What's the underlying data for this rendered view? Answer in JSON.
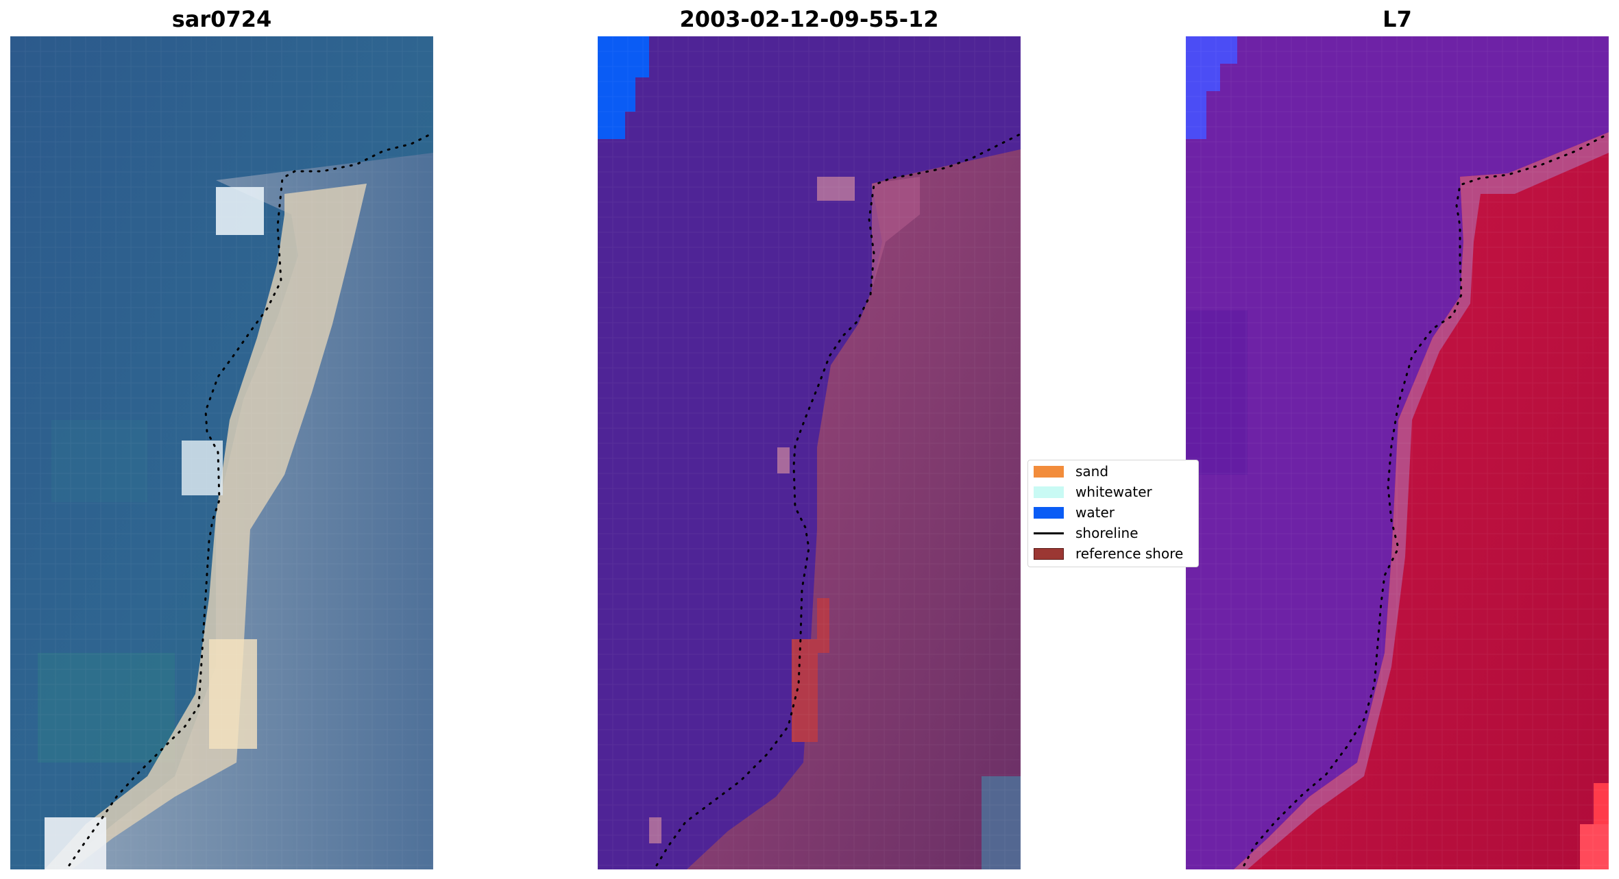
{
  "panels": [
    {
      "title": "sar0724"
    },
    {
      "title": "2003-02-12-09-55-12"
    },
    {
      "title": "L7"
    }
  ],
  "legend": {
    "items": [
      {
        "label": "sand",
        "color": "#F28C3B",
        "kind": "patch"
      },
      {
        "label": "whitewater",
        "color": "#C9FAF4",
        "kind": "patch"
      },
      {
        "label": "water",
        "color": "#0A5CF5",
        "kind": "patch"
      },
      {
        "label": "shoreline",
        "color": "#000000",
        "kind": "line"
      },
      {
        "label": "reference shore",
        "color": "#9B3733",
        "kind": "patch"
      }
    ]
  },
  "colors": {
    "ocean_rgb": "#2f5d8e",
    "sand_rgb": "#e8d6b0",
    "class_water_overlay": "#4f2496",
    "class_land": "#7e3a6e",
    "l7_water": "#6e22a6",
    "l7_land": "#c8103e"
  }
}
